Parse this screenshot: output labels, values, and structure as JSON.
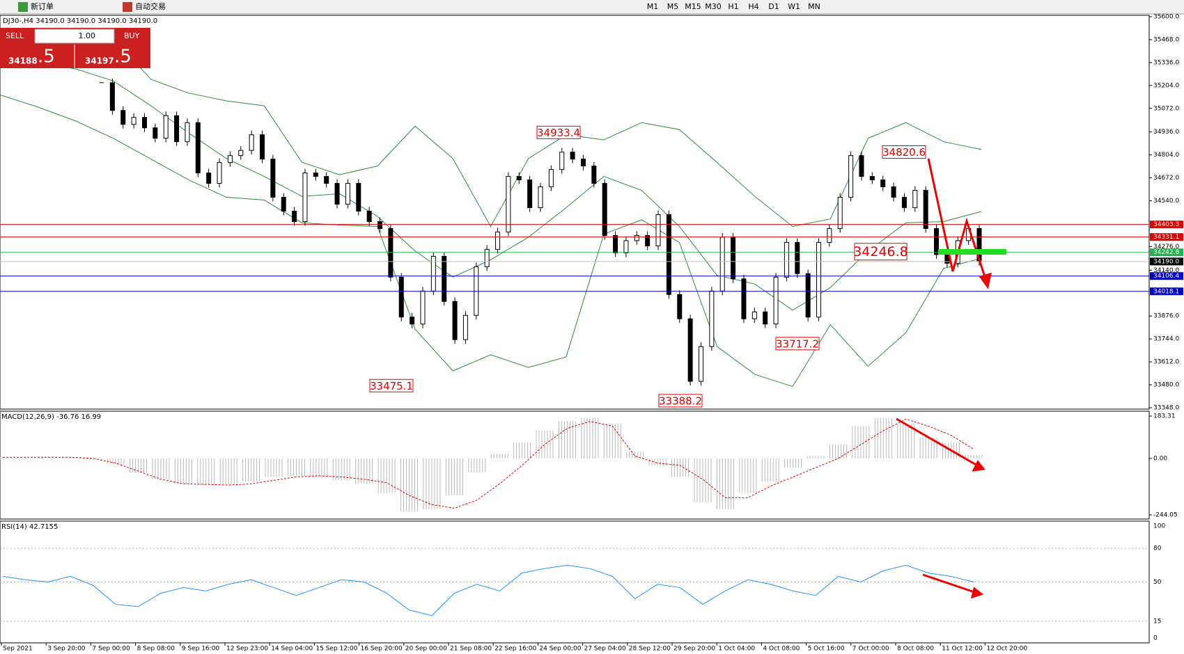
{
  "toolbar": {
    "new_order": "新订单",
    "auto_trading": "自动交易",
    "timeframes": [
      "M1",
      "M5",
      "M15",
      "M30",
      "H1",
      "H4",
      "D1",
      "W1",
      "MN"
    ]
  },
  "chart": {
    "info": "DJ30-,H4  34190.0 34190.0 34190.0 34190.0",
    "trade_panel": {
      "sell": "SELL",
      "buy": "BUY",
      "lots": "1.00",
      "bid_main": "34188",
      "bid_frac": ".5",
      "ask_main": "34197",
      "ask_frac": ".5"
    },
    "ylim": [
      33348,
      35600
    ],
    "price_ticks": [
      {
        "value": 35600,
        "label": "35600.0"
      },
      {
        "value": 35468,
        "label": "35468.0"
      },
      {
        "value": 35336,
        "label": "35336.0"
      },
      {
        "value": 35204,
        "label": "35204.0"
      },
      {
        "value": 35072,
        "label": "35072.0"
      },
      {
        "value": 34936,
        "label": "34936.0"
      },
      {
        "value": 34804,
        "label": "34804.0"
      },
      {
        "value": 34672,
        "label": "34672.0"
      },
      {
        "value": 34540,
        "label": "34540.0"
      },
      {
        "value": 34276,
        "label": "34276.0"
      },
      {
        "value": 34140,
        "label": "34140.0"
      },
      {
        "value": 33876,
        "label": "33876.0"
      },
      {
        "value": 33744,
        "label": "33744.0"
      },
      {
        "value": 33612,
        "label": "33612.0"
      },
      {
        "value": 33480,
        "label": "33480.0"
      },
      {
        "value": 33348,
        "label": "33348.0"
      }
    ],
    "levels": [
      {
        "value": 34403.3,
        "color": "#e00000"
      },
      {
        "value": 34331.1,
        "color": "#e00000"
      },
      {
        "value": 34242.8,
        "color": "#22b14c"
      },
      {
        "value": 34190,
        "label": "34190.0",
        "color": "#000000"
      },
      {
        "value": 34106.4,
        "color": "#0000cc"
      },
      {
        "value": 34018.1,
        "color": "#0000cc"
      }
    ],
    "annotations": [
      34933.4,
      34820.6,
      34246.8,
      33717.2,
      33475.1,
      33388.2
    ],
    "closes": [
      35220,
      35060,
      34980,
      35020,
      34960,
      34900,
      35030,
      34880,
      34990,
      34700,
      34640,
      34760,
      34800,
      34830,
      34920,
      34780,
      34560,
      34480,
      34420,
      34700,
      34680,
      34640,
      34520,
      34640,
      34480,
      34420,
      34380,
      34100,
      33870,
      33830,
      34020,
      34220,
      33960,
      33740,
      33880,
      34160,
      34260,
      34360,
      34680,
      34660,
      34500,
      34620,
      34720,
      34820,
      34780,
      34740,
      34640,
      34340,
      34240,
      34310,
      34340,
      34280,
      34460,
      34000,
      33860,
      33500,
      33700,
      34020,
      34330,
      34090,
      33860,
      33900,
      33830,
      34100,
      34300,
      34120,
      33870,
      34300,
      34380,
      34560,
      34800,
      34680,
      34660,
      34620,
      34560,
      34500,
      34600,
      34380,
      34230,
      34180,
      34310,
      34380,
      34190
    ],
    "bands": {
      "upper": [
        35435,
        35450,
        35470,
        35478,
        35239,
        35160,
        35115,
        35087,
        34761,
        34690,
        34740,
        34970,
        34783,
        34392,
        34783,
        34920,
        34891,
        34990,
        34950,
        34760,
        34565,
        34392,
        34435,
        34900,
        34990,
        34880,
        34835
      ],
      "middle": [
        35350,
        35330,
        35300,
        35230,
        35087,
        34930,
        34783,
        34680,
        34565,
        34580,
        34450,
        34250,
        34100,
        34200,
        34330,
        34500,
        34680,
        34600,
        34392,
        34110,
        34060,
        33910,
        34040,
        34250,
        34413,
        34420,
        34478
      ],
      "lower": [
        35150,
        35080,
        35000,
        34900,
        34780,
        34660,
        34560,
        34544,
        34413,
        34400,
        34392,
        33800,
        33560,
        33653,
        33580,
        33640,
        34348,
        34430,
        34300,
        33700,
        33540,
        33470,
        33826,
        33587,
        33780,
        34150,
        34209
      ]
    }
  },
  "macd": {
    "label": "MACD(12,26,9) -36.76 16.99",
    "ylim": [
      -244.05,
      183.31
    ],
    "ticks": [
      183.31,
      {
        "value": 0,
        "label": "0.00"
      },
      -244.05
    ],
    "histogram": [
      5,
      3,
      8,
      5,
      -5,
      -25,
      -60,
      -90,
      -110,
      -115,
      -112,
      -100,
      -80,
      -75,
      -80,
      -95,
      -110,
      -150,
      -230,
      -220,
      -160,
      -60,
      20,
      70,
      120,
      160,
      175,
      150,
      30,
      -30,
      -80,
      -190,
      -220,
      -150,
      -100,
      -40,
      10,
      60,
      140,
      175,
      150,
      90,
      70,
      15
    ],
    "signal": [
      5,
      5,
      5,
      5,
      0,
      -20,
      -55,
      -90,
      -110,
      -112,
      -115,
      -110,
      -95,
      -80,
      -75,
      -80,
      -90,
      -105,
      -160,
      -200,
      -215,
      -180,
      -110,
      -30,
      60,
      130,
      160,
      140,
      10,
      -20,
      -30,
      -90,
      -170,
      -170,
      -120,
      -80,
      -40,
      0,
      60,
      120,
      170,
      140,
      100,
      40
    ]
  },
  "rsi": {
    "label": "RSI(14) 42.7155",
    "ylim": [
      0,
      100
    ],
    "ticks": [
      100,
      80,
      50,
      15,
      0
    ],
    "values": [
      55,
      52,
      50,
      55,
      47,
      30,
      28,
      40,
      45,
      42,
      48,
      52,
      45,
      38,
      45,
      52,
      50,
      40,
      25,
      20,
      40,
      48,
      42,
      58,
      62,
      65,
      62,
      55,
      35,
      48,
      45,
      30,
      42,
      52,
      48,
      42,
      38,
      55,
      50,
      60,
      65,
      58,
      55,
      50
    ]
  },
  "time_labels": [
    "Sep 2021",
    "3 Sep 20:00",
    "7 Sep 00:00",
    "8 Sep 08:00",
    "9 Sep 16:00",
    "12 Sep 23:00",
    "14 Sep 04:00",
    "15 Sep 12:00",
    "16 Sep 20:00",
    "20 Sep 00:00",
    "21 Sep 08:00",
    "22 Sep 16:00",
    "24 Sep 00:00",
    "27 Sep 04:00",
    "28 Sep 12:00",
    "29 Sep 20:00",
    "1 Oct 04:00",
    "4 Oct 08:00",
    "5 Oct 16:00",
    "7 Oct 00:00",
    "8 Oct 08:00",
    "11 Oct 12:00",
    "12 Oct 20:00"
  ]
}
